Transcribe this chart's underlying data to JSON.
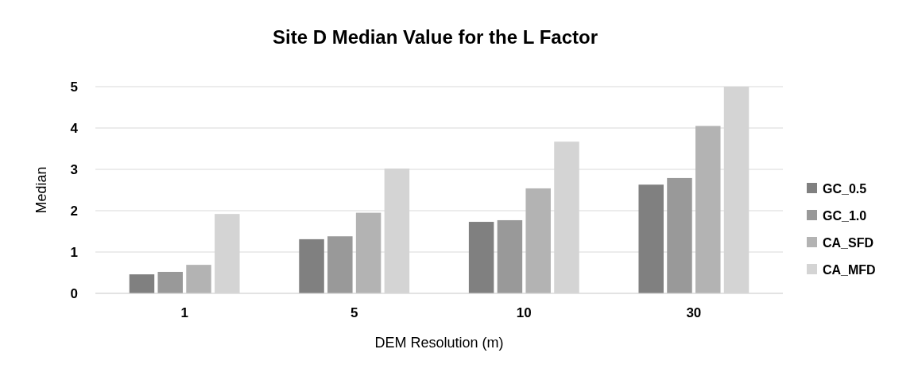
{
  "chart_data": {
    "type": "bar",
    "title": "Site D Median Value for the L Factor",
    "xlabel": "DEM Resolution (m)",
    "ylabel": "Median",
    "categories": [
      "1",
      "5",
      "10",
      "30"
    ],
    "series": [
      {
        "name": "GC_0.5",
        "color": "#808080",
        "values": [
          0.46,
          1.31,
          1.73,
          2.63
        ]
      },
      {
        "name": "GC_1.0",
        "color": "#999999",
        "values": [
          0.52,
          1.38,
          1.77,
          2.79
        ]
      },
      {
        "name": "CA_SFD",
        "color": "#b3b3b3",
        "values": [
          0.69,
          1.95,
          2.54,
          4.05
        ]
      },
      {
        "name": "CA_MFD",
        "color": "#d4d4d4",
        "values": [
          1.92,
          3.02,
          3.67,
          5.0
        ]
      }
    ],
    "ylim": [
      0,
      5
    ],
    "yticks": [
      {
        "value": 0,
        "label": "0"
      },
      {
        "value": 1,
        "label": "1"
      },
      {
        "value": 2,
        "label": "2"
      },
      {
        "value": 3,
        "label": "3"
      },
      {
        "value": 4,
        "label": "4"
      },
      {
        "value": 5,
        "label": "5"
      }
    ],
    "grid": "y",
    "legend": "right"
  }
}
